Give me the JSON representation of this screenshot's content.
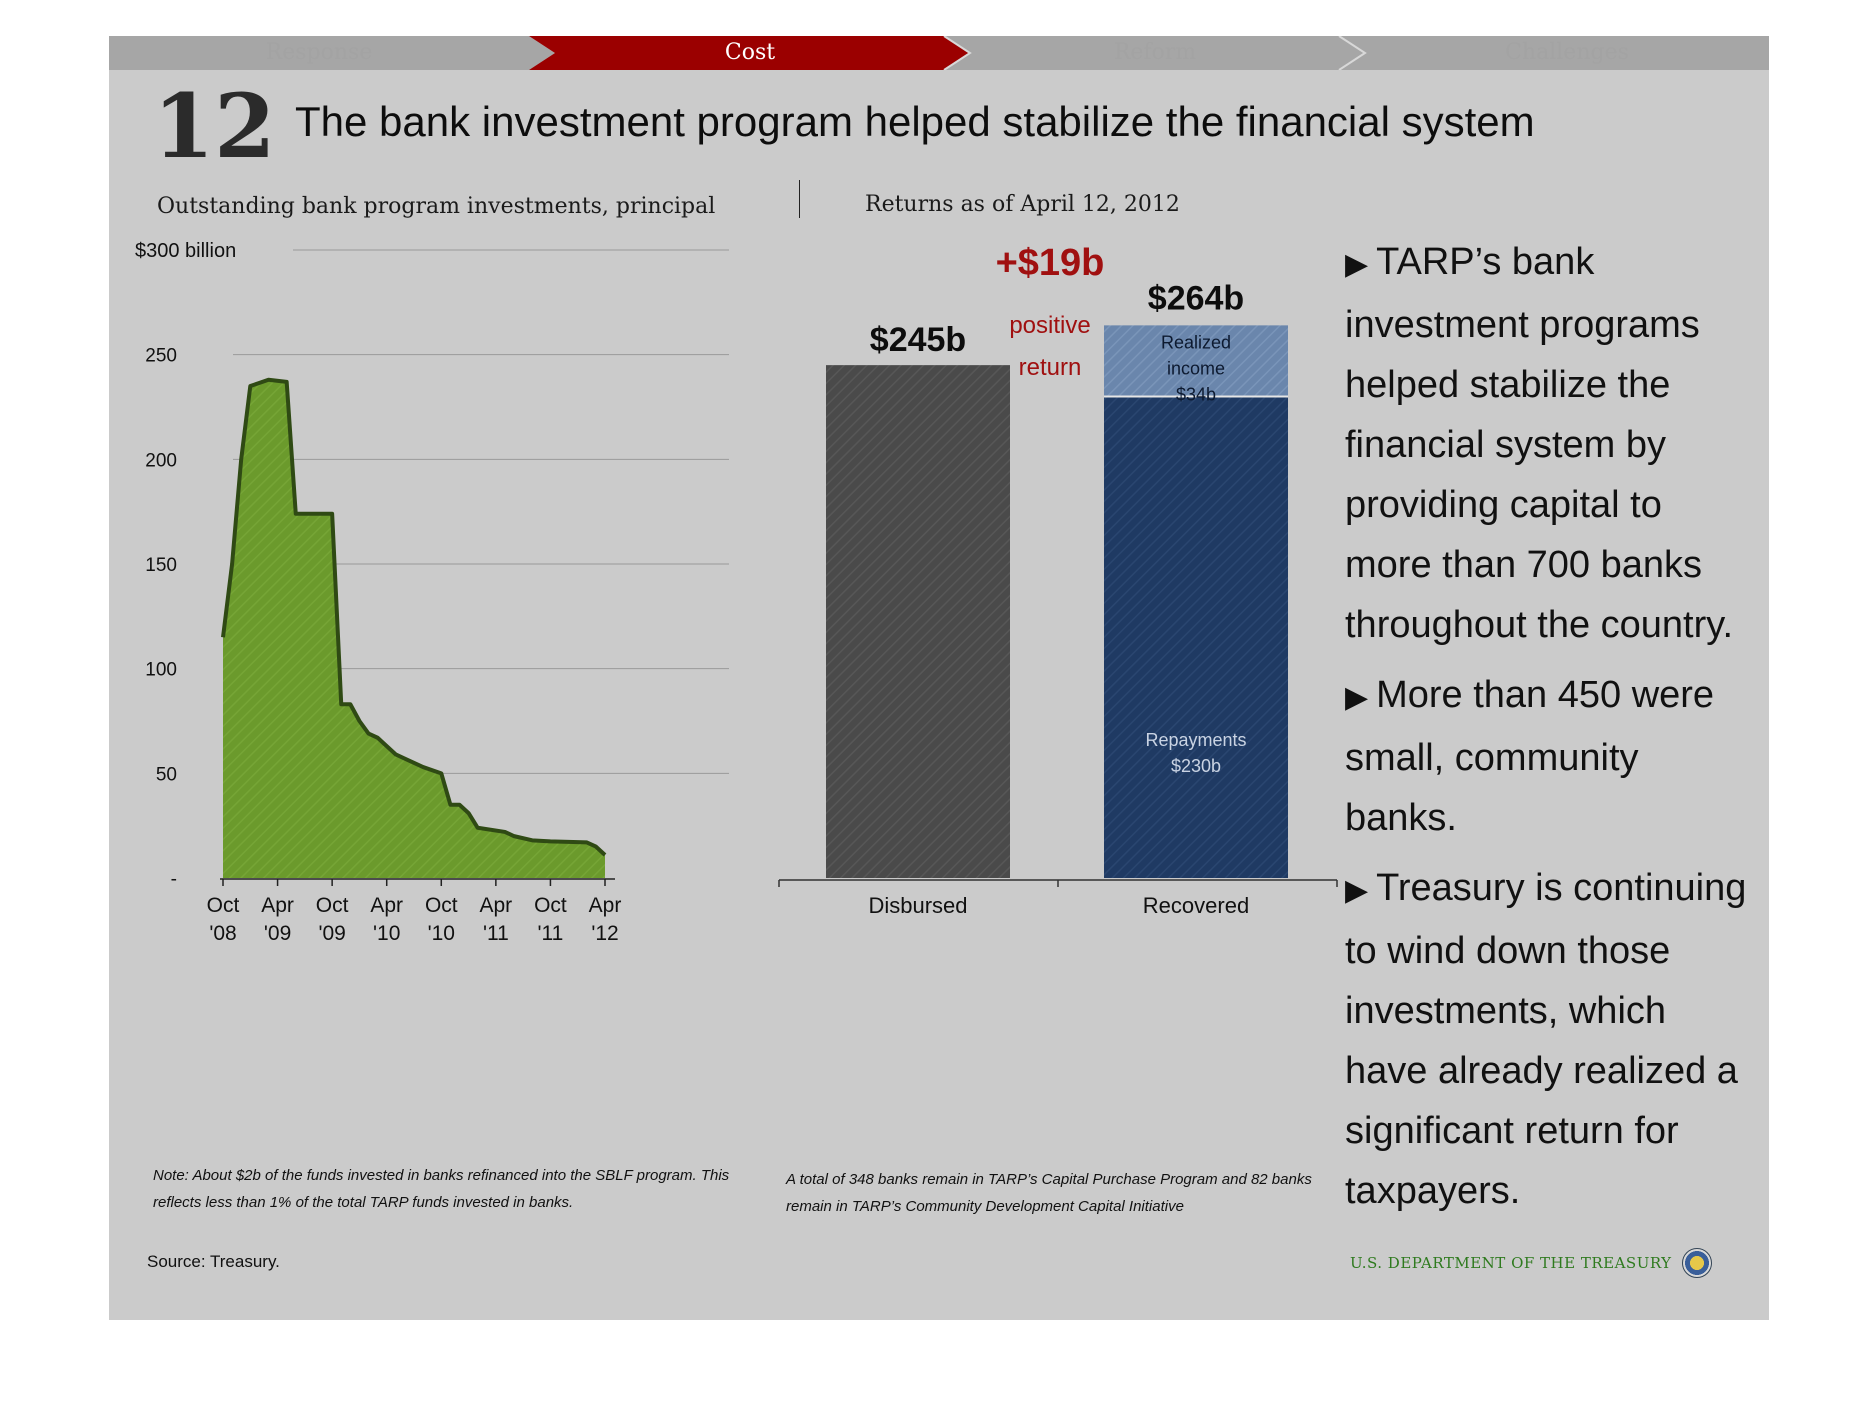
{
  "nav": {
    "items": [
      "Response",
      "Cost",
      "Reform",
      "Challenges"
    ],
    "active": "Cost",
    "colors": {
      "active_bg": "#9b0000",
      "inactive_bg": "#a6a6a6"
    }
  },
  "slide": {
    "number": "12",
    "title": "The bank investment program helped stabilize the financial system"
  },
  "left_chart": {
    "title": "Outstanding bank program investments, principal",
    "unit_label": "$300 billion",
    "note": "Note: About $2b of the funds invested in banks refinanced into the SBLF program. This reflects less than 1% of the total TARP funds invested in banks."
  },
  "right_chart": {
    "title": "Returns as of April 12, 2012",
    "disbursed_label": "$245b",
    "recovered_label": "$264b",
    "difference_label": "+$19b",
    "difference_caption_1": "positive",
    "difference_caption_2": "return",
    "realized_label_1": "Realized",
    "realized_label_2": "income",
    "realized_label_3": "$34b",
    "repayments_label_1": "Repayments",
    "repayments_label_2": "$230b",
    "note": "A total of 348 banks remain in TARP’s Capital Purchase Program and 82 banks remain in TARP’s Community Development Capital Initiative"
  },
  "bullets": [
    "TARP’s bank investment programs helped stabilize the financial system by providing capital to more than 700 banks throughout the country.",
    "More than 450 were small, community banks.",
    "Treasury is continuing to wind down those investments, which have already realized a significant return for taxpayers."
  ],
  "footer": {
    "source": "Source: Treasury.",
    "agency": "U.S. DEPARTMENT OF THE TREASURY"
  },
  "chart_data": [
    {
      "type": "area",
      "title": "Outstanding bank program investments, principal",
      "ylabel": "$300 billion",
      "ylim": [
        0,
        300
      ],
      "y_ticks": [
        0,
        50,
        100,
        150,
        200,
        250,
        300
      ],
      "y_tick_labels": [
        "-",
        "50",
        "100",
        "150",
        "200",
        "250",
        "$300 billion"
      ],
      "x_tick_labels": [
        "Oct '08",
        "Apr '09",
        "Oct '09",
        "Apr '10",
        "Oct '10",
        "Apr '11",
        "Oct '11",
        "Apr '12"
      ],
      "x_ticks": [
        "2008-10",
        "2009-04",
        "2009-10",
        "2010-04",
        "2010-10",
        "2011-04",
        "2011-10",
        "2012-04"
      ],
      "series": [
        {
          "color": "#6b9a2c",
          "points": [
            [
              "2008-10",
              115
            ],
            [
              "2008-11",
              150
            ],
            [
              "2008-12",
              200
            ],
            [
              "2009-01",
              235
            ],
            [
              "2009-03",
              238
            ],
            [
              "2009-05",
              237
            ],
            [
              "2009-06",
              174
            ],
            [
              "2009-10",
              174
            ],
            [
              "2009-11",
              83
            ],
            [
              "2009-12",
              83
            ],
            [
              "2010-01",
              75
            ],
            [
              "2010-02",
              69
            ],
            [
              "2010-03",
              67
            ],
            [
              "2010-05",
              59
            ],
            [
              "2010-06",
              57
            ],
            [
              "2010-08",
              53
            ],
            [
              "2010-10",
              50
            ],
            [
              "2010-11",
              35
            ],
            [
              "2010-12",
              35
            ],
            [
              "2011-01",
              31
            ],
            [
              "2011-02",
              24
            ],
            [
              "2011-05",
              22
            ],
            [
              "2011-06",
              20
            ],
            [
              "2011-08",
              18
            ],
            [
              "2011-10",
              17.5
            ],
            [
              "2012-02",
              17
            ],
            [
              "2012-03",
              15
            ],
            [
              "2012-04",
              11
            ]
          ]
        }
      ],
      "grid": true
    },
    {
      "type": "bar",
      "title": "Returns as of April 12, 2012",
      "categories": [
        "Disbursed",
        "Recovered"
      ],
      "series": [
        {
          "name": "Repayments",
          "values": [
            245,
            230
          ],
          "colors": [
            "#4a4a4a",
            "#1f3a63"
          ]
        },
        {
          "name": "Realized income",
          "values": [
            0,
            34
          ],
          "colors": [
            "#4a4a4a",
            "#6a86ac"
          ]
        }
      ],
      "totals": [
        "$245b",
        "$264b"
      ],
      "annotation": "+$19b positive return",
      "ylim": [
        0,
        300
      ]
    }
  ]
}
